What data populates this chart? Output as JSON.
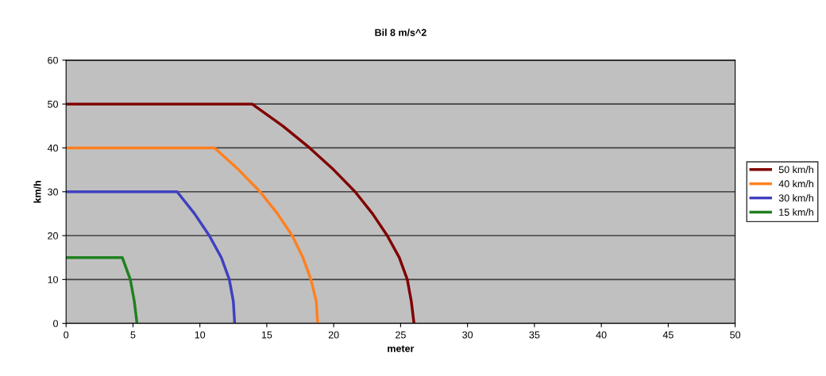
{
  "chart_data": {
    "type": "line",
    "title": "Bil 8 m/s^2",
    "xlabel": "meter",
    "ylabel": "km/h",
    "xlim": [
      0,
      50
    ],
    "xticks": [
      0,
      5,
      10,
      15,
      20,
      25,
      30,
      35,
      40,
      45,
      50
    ],
    "ylim": [
      0,
      60
    ],
    "yticks": [
      0,
      10,
      20,
      30,
      40,
      50,
      60
    ],
    "grid": "y",
    "legend": "right",
    "marker": "none",
    "line_style": "solid",
    "series": [
      {
        "name": "50 km/h",
        "color": "#800000",
        "x": [
          0,
          13.9,
          16.2,
          18.2,
          20.0,
          21.6,
          22.9,
          24.0,
          24.9,
          25.5,
          25.8,
          26.0
        ],
        "values": [
          50,
          50,
          45,
          40,
          35,
          30,
          25,
          20,
          15,
          10,
          5,
          0
        ]
      },
      {
        "name": "40 km/h",
        "color": "#ff8020",
        "x": [
          0,
          11.1,
          12.9,
          14.5,
          15.8,
          16.9,
          17.7,
          18.3,
          18.7,
          18.8
        ],
        "values": [
          40,
          40,
          35,
          30,
          25,
          20,
          15,
          10,
          5,
          0
        ]
      },
      {
        "name": "30 km/h",
        "color": "#4040c0",
        "x": [
          0,
          8.3,
          9.6,
          10.7,
          11.6,
          12.2,
          12.5,
          12.6
        ],
        "values": [
          30,
          30,
          25,
          20,
          15,
          10,
          5,
          0
        ]
      },
      {
        "name": "15 km/h",
        "color": "#208020",
        "x": [
          0,
          4.2,
          4.8,
          5.1,
          5.3
        ],
        "values": [
          15,
          15,
          10,
          5,
          0
        ]
      }
    ]
  }
}
